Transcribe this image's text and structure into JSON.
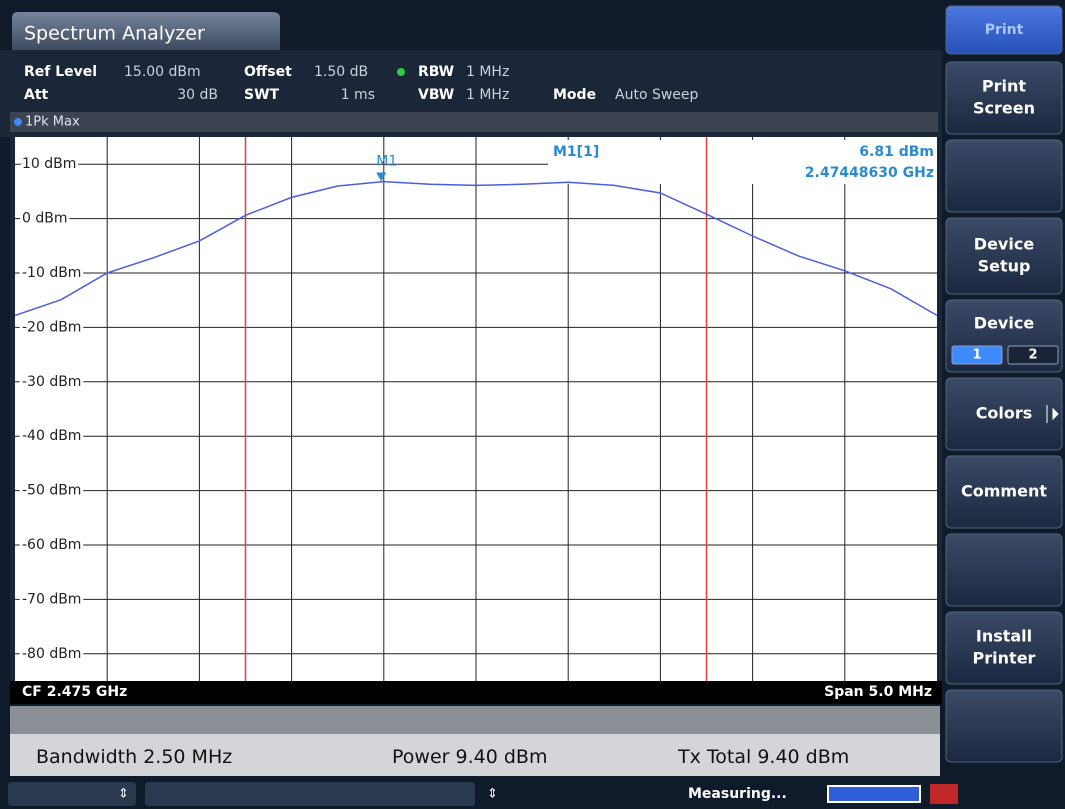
{
  "header": {
    "title": "Spectrum Analyzer"
  },
  "settings": [
    {
      "label": "Ref Level",
      "value": "15.00 dBm"
    },
    {
      "label": "Offset",
      "value": "1.50 dB"
    },
    {
      "label": "RBW",
      "value": "1 MHz"
    },
    {
      "label": "Att",
      "value": "30 dB"
    },
    {
      "label": "SWT",
      "value": "1 ms"
    },
    {
      "label": "VBW",
      "value": "1 MHz"
    },
    {
      "label": "Mode",
      "value": "Auto Sweep"
    }
  ],
  "chart_data": {
    "type": "line",
    "x": [
      2.4725,
      2.47275,
      2.473,
      2.47325,
      2.4735,
      2.47375,
      2.474,
      2.47425,
      2.4745,
      2.47475,
      2.475,
      2.47525,
      2.4755,
      2.47575,
      2.476,
      2.47625,
      2.4765,
      2.47675,
      2.477,
      2.47725,
      2.4775
    ],
    "series": [
      {
        "name": "1Pk Max",
        "color": "#4a5ee0",
        "values": [
          -17.8,
          -14.9,
          -10.0,
          -7.2,
          -4.1,
          0.6,
          3.9,
          6.0,
          6.8,
          6.3,
          6.1,
          6.3,
          6.7,
          6.1,
          4.7,
          0.8,
          -3.2,
          -6.9,
          -9.6,
          -12.9,
          -17.8
        ]
      }
    ],
    "xlim": [
      2.4725,
      2.4775
    ],
    "x_divisions": 10,
    "ylim": [
      -85,
      15
    ],
    "yticks": [
      {
        "value": 10,
        "label": "10 dBm"
      },
      {
        "value": 0,
        "label": "0 dBm"
      },
      {
        "value": -10,
        "label": "-10 dBm"
      },
      {
        "value": -20,
        "label": "-20 dBm"
      },
      {
        "value": -30,
        "label": "-30 dBm"
      },
      {
        "value": -40,
        "label": "-40 dBm"
      },
      {
        "value": -50,
        "label": "-50 dBm"
      },
      {
        "value": -60,
        "label": "-60 dBm"
      },
      {
        "value": -70,
        "label": "-70 dBm"
      },
      {
        "value": -80,
        "label": "-80 dBm"
      }
    ],
    "grid": true,
    "channel_lines": {
      "color": "#e0403a",
      "x": [
        2.47375,
        2.47625
      ]
    },
    "marker": {
      "label": "M1",
      "readout": "M1[1]",
      "x": 2.4744863,
      "x_label": "2.47448630 GHz",
      "y": 6.81,
      "y_label": "6.81 dBm",
      "color": "#2a8ad0"
    },
    "footer": {
      "left": "CF 2.475 GHz",
      "right": "Span 5.0 MHz"
    }
  },
  "results": [
    {
      "label": "Bandwidth",
      "value": "2.50 MHz"
    },
    {
      "label": "Power",
      "value": "9.40 dBm"
    },
    {
      "label": "Tx Total",
      "value": "9.40 dBm"
    }
  ],
  "softkeys": [
    {
      "lines": [
        "Print"
      ]
    },
    {
      "lines": [
        "Print",
        "Screen"
      ]
    },
    {
      "lines": [
        "Device",
        "Setup"
      ]
    },
    {
      "lines": [
        "Device"
      ],
      "options": [
        "1",
        "2"
      ]
    },
    {
      "lines": [
        "Colors"
      ]
    },
    {
      "lines": [
        "Comment"
      ]
    },
    {
      "lines": [
        "Install",
        "Printer"
      ]
    }
  ],
  "status": {
    "text": "Measuring..."
  }
}
